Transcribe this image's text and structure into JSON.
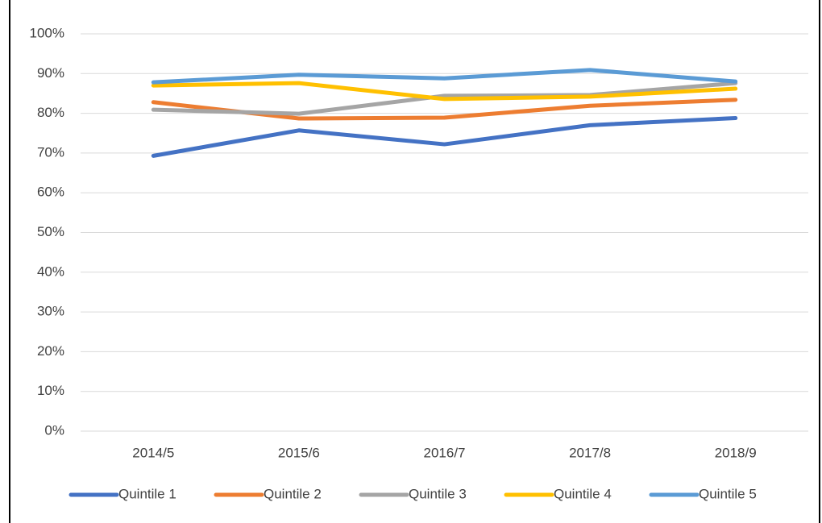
{
  "chart_data": {
    "type": "line",
    "categories": [
      "2014/5",
      "2015/6",
      "2016/7",
      "2017/8",
      "2018/9"
    ],
    "series": [
      {
        "name": "Quintile 1",
        "color": "#4472c4",
        "values": [
          69.3,
          75.7,
          72.2,
          77,
          78.8
        ]
      },
      {
        "name": "Quintile 2",
        "color": "#ed7d31",
        "values": [
          82.8,
          78.7,
          78.9,
          81.9,
          83.4
        ]
      },
      {
        "name": "Quintile 3",
        "color": "#a5a5a5",
        "values": [
          80.9,
          79.9,
          84.4,
          84.6,
          87.6
        ]
      },
      {
        "name": "Quintile 4",
        "color": "#ffc000",
        "values": [
          87,
          87.6,
          83.6,
          84.2,
          86.2
        ]
      },
      {
        "name": "Quintile 5",
        "color": "#5b9bd5",
        "values": [
          87.8,
          89.7,
          88.8,
          90.9,
          88
        ]
      }
    ],
    "ylim": [
      0,
      100
    ],
    "yticks": [
      {
        "value": 0,
        "label": "0%"
      },
      {
        "value": 10,
        "label": "10%"
      },
      {
        "value": 20,
        "label": "20%"
      },
      {
        "value": 30,
        "label": "30%"
      },
      {
        "value": 40,
        "label": "40%"
      },
      {
        "value": 50,
        "label": "50%"
      },
      {
        "value": 60,
        "label": "60%"
      },
      {
        "value": 70,
        "label": "70%"
      },
      {
        "value": 80,
        "label": "80%"
      },
      {
        "value": 90,
        "label": "90%"
      },
      {
        "value": 100,
        "label": "100%"
      }
    ],
    "grid": true,
    "legend": "bottom"
  }
}
